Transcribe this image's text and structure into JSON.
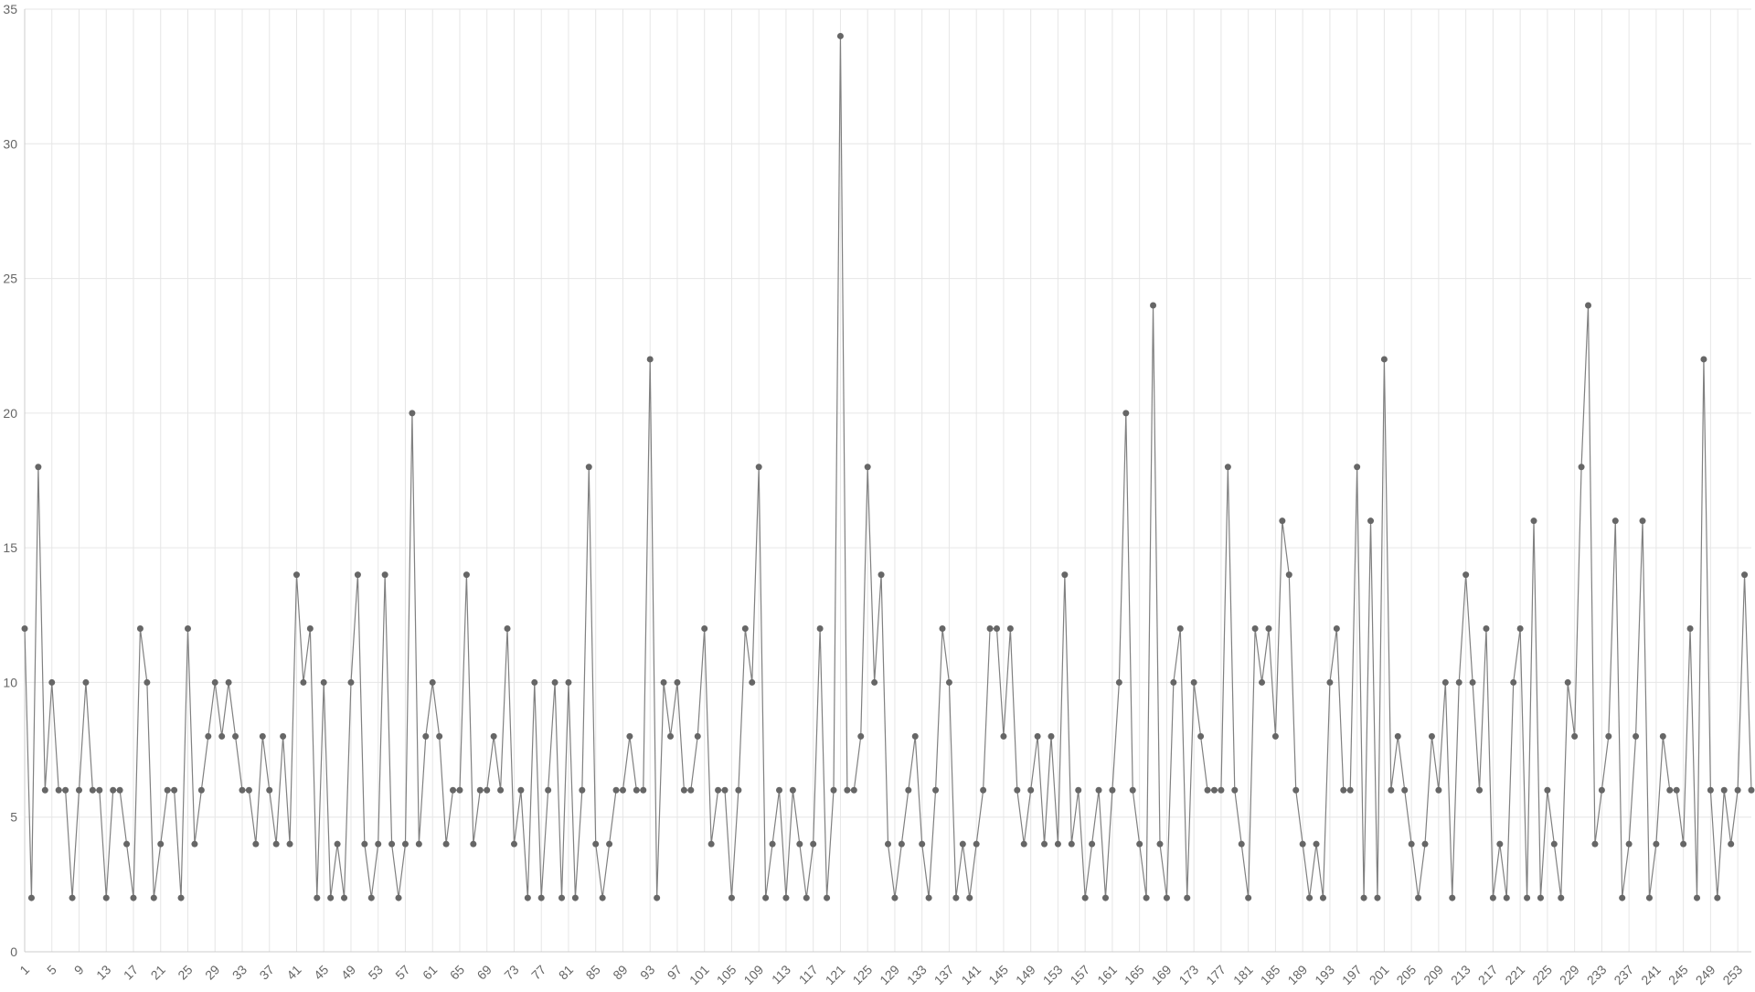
{
  "chart_data": {
    "type": "line",
    "title": "",
    "xlabel": "",
    "ylabel": "",
    "ylim": [
      0,
      35
    ],
    "yticks": [
      "0",
      "5",
      "10",
      "15",
      "20",
      "25",
      "30",
      "35"
    ],
    "x_start": 1,
    "x_end": 256,
    "x_tick_step": 4,
    "grid": true,
    "legend": "none",
    "line_color": "#808080",
    "marker_color": "#666666",
    "grid_color": "#e6e6e6",
    "series": [
      {
        "values": [
          12,
          2,
          18,
          6,
          10,
          6,
          6,
          2,
          6,
          10,
          6,
          6,
          2,
          6,
          6,
          4,
          2,
          12,
          10,
          2,
          4,
          6,
          6,
          2,
          12,
          4,
          6,
          8,
          10,
          8,
          10,
          8,
          6,
          6,
          4,
          8,
          6,
          4,
          8,
          4,
          14,
          10,
          12,
          2,
          10,
          2,
          4,
          2,
          10,
          14,
          4,
          2,
          4,
          14,
          4,
          2,
          4,
          20,
          4,
          8,
          10,
          8,
          4,
          6,
          6,
          14,
          4,
          6,
          6,
          8,
          6,
          12,
          4,
          6,
          2,
          10,
          2,
          6,
          10,
          2,
          10,
          2,
          6,
          18,
          4,
          2,
          4,
          6,
          6,
          8,
          6,
          6,
          22,
          2,
          10,
          8,
          10,
          6,
          6,
          8,
          12,
          4,
          6,
          6,
          2,
          6,
          12,
          10,
          18,
          2,
          4,
          6,
          2,
          6,
          4,
          2,
          4,
          12,
          2,
          6,
          34,
          6,
          6,
          8,
          18,
          10,
          14,
          4,
          2,
          4,
          6,
          8,
          4,
          2,
          6,
          12,
          10,
          2,
          4,
          2,
          4,
          6,
          12,
          12,
          8,
          12,
          6,
          4,
          6,
          8,
          4,
          8,
          4,
          14,
          4,
          6,
          2,
          4,
          6,
          2,
          6,
          10,
          20,
          6,
          4,
          2,
          24,
          4,
          2,
          10,
          12,
          2,
          10,
          8,
          6,
          6,
          6,
          18,
          6,
          4,
          2,
          12,
          10,
          12,
          8,
          16,
          14,
          6,
          4,
          2,
          4,
          2,
          10,
          12,
          6,
          6,
          18,
          2,
          16,
          2,
          22,
          6,
          8,
          6,
          4,
          2,
          4,
          8,
          6,
          10,
          2,
          10,
          14,
          10,
          6,
          12,
          2,
          4,
          2,
          10,
          12,
          2,
          16,
          2,
          6,
          4,
          2,
          10,
          8,
          18,
          24,
          4,
          6,
          8,
          16,
          2,
          4,
          8,
          16,
          2,
          4,
          8,
          6,
          6,
          4,
          12,
          2,
          22,
          6,
          2,
          6,
          4,
          6,
          14,
          6
        ]
      }
    ]
  }
}
